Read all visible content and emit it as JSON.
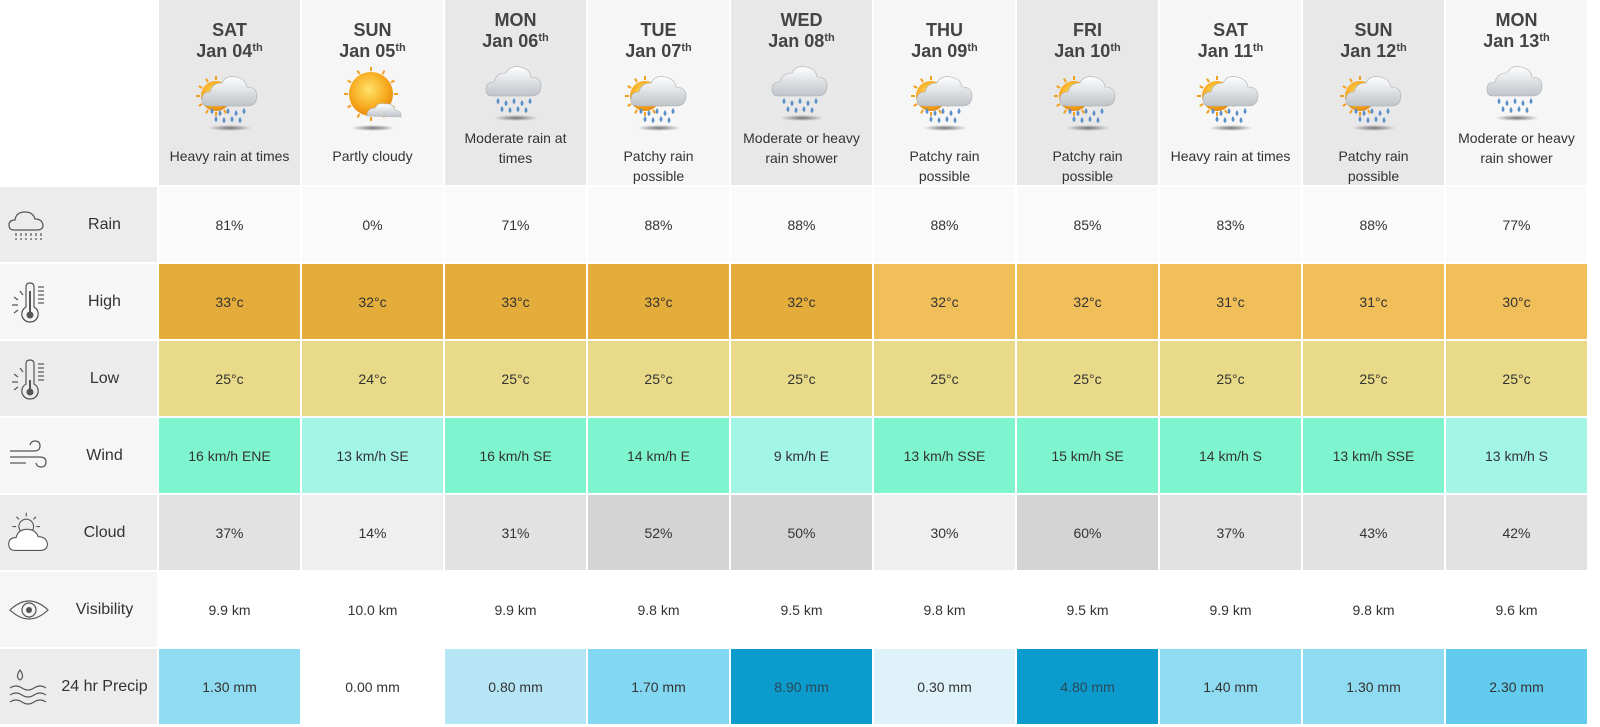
{
  "days": [
    {
      "dow": "SAT",
      "date": "Jan 04",
      "suffix": "th",
      "condition": "Heavy rain at times",
      "icon": "sun-cloud-rain-icon",
      "shade": true,
      "wrap": false
    },
    {
      "dow": "SUN",
      "date": "Jan 05",
      "suffix": "th",
      "condition": "Partly cloudy",
      "icon": "sun-cloud-icon",
      "shade": false,
      "wrap": false
    },
    {
      "dow": "MON",
      "date": "Jan 06",
      "suffix": "th",
      "condition": "Moderate rain at times",
      "icon": "cloud-rain-icon",
      "shade": true,
      "wrap": true
    },
    {
      "dow": "TUE",
      "date": "Jan 07",
      "suffix": "th",
      "condition": "Patchy rain possible",
      "icon": "sun-cloud-rain-icon",
      "shade": false,
      "wrap": false
    },
    {
      "dow": "WED",
      "date": "Jan 08",
      "suffix": "th",
      "condition": "Moderate or heavy rain shower",
      "icon": "cloud-rain-icon",
      "shade": true,
      "wrap": true
    },
    {
      "dow": "THU",
      "date": "Jan 09",
      "suffix": "th",
      "condition": "Patchy rain possible",
      "icon": "sun-cloud-rain-icon",
      "shade": false,
      "wrap": false
    },
    {
      "dow": "FRI",
      "date": "Jan 10",
      "suffix": "th",
      "condition": "Patchy rain possible",
      "icon": "sun-cloud-rain-icon",
      "shade": true,
      "wrap": false
    },
    {
      "dow": "SAT",
      "date": "Jan 11",
      "suffix": "th",
      "condition": "Heavy rain at times",
      "icon": "sun-cloud-rain-icon",
      "shade": false,
      "wrap": false
    },
    {
      "dow": "SUN",
      "date": "Jan 12",
      "suffix": "th",
      "condition": "Patchy rain possible",
      "icon": "sun-cloud-rain-icon",
      "shade": true,
      "wrap": false
    },
    {
      "dow": "MON",
      "date": "Jan 13",
      "suffix": "th",
      "condition": "Moderate or heavy rain shower",
      "icon": "cloud-rain-icon",
      "shade": false,
      "wrap": true
    }
  ],
  "rows": [
    {
      "key": "rain",
      "label": "Rain",
      "icon": "rain-cloud-icon",
      "values": [
        "81%",
        "0%",
        "71%",
        "88%",
        "88%",
        "88%",
        "85%",
        "83%",
        "88%",
        "77%"
      ],
      "colors": [
        "#fafafa",
        "#fafafa",
        "#fafafa",
        "#fafafa",
        "#fafafa",
        "#fafafa",
        "#fafafa",
        "#fafafa",
        "#fafafa",
        "#fafafa"
      ]
    },
    {
      "key": "high",
      "label": "High",
      "icon": "thermometer-high-icon",
      "values": [
        "33°c",
        "32°c",
        "33°c",
        "33°c",
        "32°c",
        "32°c",
        "32°c",
        "31°c",
        "31°c",
        "30°c"
      ],
      "colors": [
        "#e4ad3b",
        "#e4ad3b",
        "#e4ad3b",
        "#e4ad3b",
        "#e4ad3b",
        "#f0bf5a",
        "#f0bf5a",
        "#f0bf5a",
        "#f0bf5a",
        "#f0bf5a"
      ]
    },
    {
      "key": "low",
      "label": "Low",
      "icon": "thermometer-low-icon",
      "values": [
        "25°c",
        "24°c",
        "25°c",
        "25°c",
        "25°c",
        "25°c",
        "25°c",
        "25°c",
        "25°c",
        "25°c"
      ],
      "colors": [
        "#e8da88",
        "#e8da88",
        "#e8da88",
        "#e8da88",
        "#e8da88",
        "#e8da88",
        "#e8da88",
        "#e8da88",
        "#e8da88",
        "#e8da88"
      ]
    },
    {
      "key": "wind",
      "label": "Wind",
      "icon": "wind-icon",
      "values": [
        "16 km/h ENE",
        "13 km/h SE",
        "16 km/h SE",
        "14 km/h E",
        "9 km/h E",
        "13 km/h SSE",
        "15 km/h SE",
        "14 km/h S",
        "13 km/h SSE",
        "13 km/h S"
      ],
      "colors": [
        "#7ef5cf",
        "#a3f5e6",
        "#7ef5cf",
        "#7ef5cf",
        "#a3f5e6",
        "#7ef5cf",
        "#7ef5cf",
        "#7ef5cf",
        "#7ef5cf",
        "#a3f5e6"
      ]
    },
    {
      "key": "cloud",
      "label": "Cloud",
      "icon": "partly-cloudy-icon",
      "values": [
        "37%",
        "14%",
        "31%",
        "52%",
        "50%",
        "30%",
        "60%",
        "37%",
        "43%",
        "42%"
      ],
      "colors": [
        "#e2e2e2",
        "#efefef",
        "#e2e2e2",
        "#d4d4d4",
        "#d4d4d4",
        "#efefef",
        "#d4d4d4",
        "#e2e2e2",
        "#e2e2e2",
        "#e2e2e2"
      ]
    },
    {
      "key": "visibility",
      "label": "Visibility",
      "icon": "eye-icon",
      "values": [
        "9.9 km",
        "10.0 km",
        "9.9 km",
        "9.8 km",
        "9.5 km",
        "9.8 km",
        "9.5 km",
        "9.9 km",
        "9.8 km",
        "9.6 km"
      ],
      "colors": [
        "#ffffff",
        "#ffffff",
        "#ffffff",
        "#ffffff",
        "#ffffff",
        "#ffffff",
        "#ffffff",
        "#ffffff",
        "#ffffff",
        "#ffffff"
      ]
    },
    {
      "key": "precip",
      "label": "24 hr Precip",
      "icon": "precip-drop-icon",
      "values": [
        "1.30 mm",
        "0.00 mm",
        "0.80 mm",
        "1.70 mm",
        "8.90 mm",
        "0.30 mm",
        "4.80 mm",
        "1.40 mm",
        "1.30 mm",
        "2.30 mm"
      ],
      "colors": [
        "#8fdcf2",
        "#ffffff",
        "#b6e6f5",
        "#82d8f2",
        "#0b9bcc",
        "#dff2f9",
        "#0b9bcc",
        "#8fdcf2",
        "#8fdcf2",
        "#63cbee"
      ]
    }
  ]
}
